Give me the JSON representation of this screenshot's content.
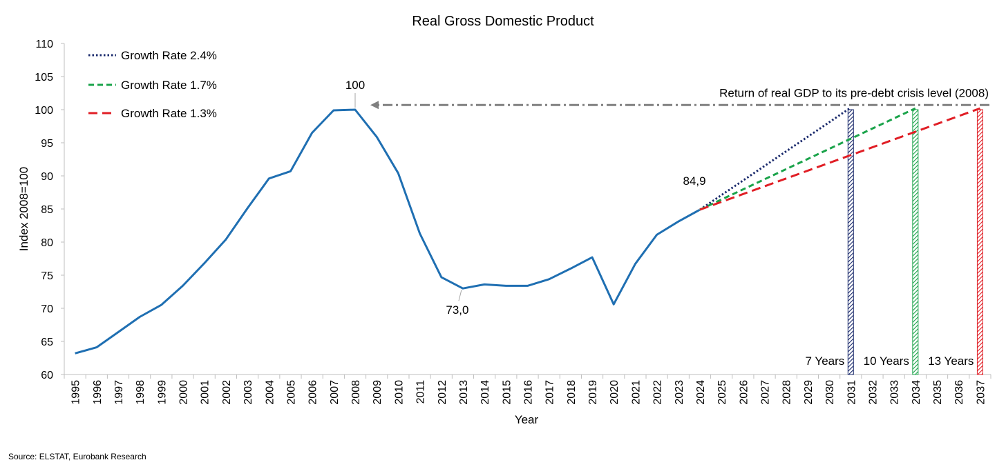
{
  "chart_data": {
    "type": "line",
    "title": "Real Gross Domestic Product",
    "xlabel": "Year",
    "ylabel": "Index 2008=100",
    "ylim": [
      60,
      110
    ],
    "yticks": [
      60,
      65,
      70,
      75,
      80,
      85,
      90,
      95,
      100,
      105,
      110
    ],
    "x": [
      "1995",
      "1996",
      "1997",
      "1998",
      "1999",
      "2000",
      "2001",
      "2002",
      "2003",
      "2004",
      "2005",
      "2006",
      "2007",
      "2008",
      "2009",
      "2010",
      "2011",
      "2012",
      "2013",
      "2014",
      "2015",
      "2016",
      "2017",
      "2018",
      "2019",
      "2020",
      "2021",
      "2022",
      "2023",
      "2024",
      "2025",
      "2026",
      "2027",
      "2028",
      "2029",
      "2030",
      "2031",
      "2032",
      "2033",
      "2034",
      "2035",
      "2036",
      "2037"
    ],
    "series": [
      {
        "name": "Real GDP",
        "color": "#1f6fb2",
        "style": "solid",
        "x": [
          "1995",
          "1996",
          "1997",
          "1998",
          "1999",
          "2000",
          "2001",
          "2002",
          "2003",
          "2004",
          "2005",
          "2006",
          "2007",
          "2008",
          "2009",
          "2010",
          "2011",
          "2012",
          "2013",
          "2014",
          "2015",
          "2016",
          "2017",
          "2018",
          "2019",
          "2020",
          "2021",
          "2022",
          "2023",
          "2024"
        ],
        "values": [
          63.2,
          64.1,
          66.4,
          68.7,
          70.5,
          73.4,
          76.8,
          80.4,
          85.1,
          89.6,
          90.7,
          96.5,
          99.9,
          100.0,
          95.9,
          90.4,
          81.3,
          74.7,
          73.0,
          73.6,
          73.4,
          73.4,
          74.4,
          76.0,
          77.7,
          70.6,
          76.7,
          81.1,
          83.1,
          84.9
        ]
      },
      {
        "name": "Growth Rate 2.4%",
        "color": "#1a2a6c",
        "style": "dotted",
        "x": [
          "2024",
          "2031"
        ],
        "values": [
          84.9,
          100.3
        ]
      },
      {
        "name": "Growth Rate 1.7%",
        "color": "#1aa34a",
        "style": "dashed",
        "x": [
          "2024",
          "2034"
        ],
        "values": [
          84.9,
          100.2
        ]
      },
      {
        "name": "Growth Rate 1.3%",
        "color": "#e01e25",
        "style": "longdash",
        "x": [
          "2024",
          "2037"
        ],
        "values": [
          84.9,
          100.2
        ]
      }
    ],
    "reference_line": {
      "value": 100.7,
      "from": "2037",
      "to": "2008",
      "color": "#808080",
      "label": "Return of real GDP to its pre-debt crisis level (2008)"
    },
    "annotations": [
      {
        "text": "100",
        "x": "2008",
        "value": 100.0
      },
      {
        "text": "73,0",
        "x": "2013",
        "value": 73.0
      },
      {
        "text": "84,9",
        "x": "2024",
        "value": 84.9
      }
    ],
    "year_markers": [
      {
        "year": "2031",
        "label": "7 Years",
        "color": "#1a2a6c"
      },
      {
        "year": "2034",
        "label": "10 Years",
        "color": "#1aa34a"
      },
      {
        "year": "2037",
        "label": "13 Years",
        "color": "#e01e25"
      }
    ],
    "legend_position": "top-left"
  },
  "source": "Source: ELSTAT, Eurobank Research"
}
